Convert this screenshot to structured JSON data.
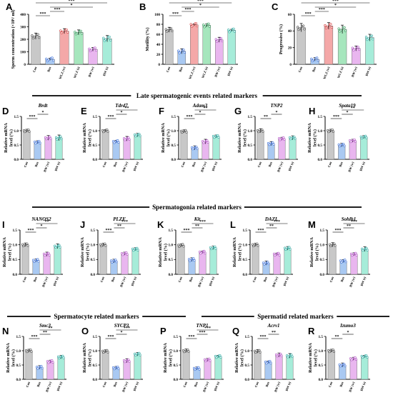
{
  "colors": {
    "Con": "#c8c8c8",
    "Bus": "#a9c9f2",
    "WLZ (w)": "#f4a8a8",
    "WLZ (s)": "#a6e6bd",
    "BW (w)": "#e9b6ef",
    "BW (s)": "#a6ecd9",
    "axis": "#000000",
    "dot": "#444444",
    "bus_dot": "#3a6fd8",
    "wlz_w_dot": "#d43a3a",
    "wlz_s_dot": "#2e9a58",
    "bw_w_dot": "#b14cc4",
    "bw_s_dot": "#28a9a0"
  },
  "sections": [
    {
      "id": "late",
      "title": "Late spermatogenic events related markers"
    },
    {
      "id": "spermatogonia",
      "title": "Spermatogonia related markers"
    },
    {
      "id": "spermatocyte",
      "title": "Spermatocyte related markers"
    },
    {
      "id": "spermatid",
      "title": "Spermatid related markers"
    }
  ],
  "chart_data": [
    {
      "panel": "A",
      "type": "bar",
      "title": "",
      "ylabel": "Sperm concentration (×10⁶/ ml)",
      "categories": [
        "Con",
        "Bus",
        "WLZ (w)",
        "WLZ (s)",
        "BW (w)",
        "BW (s)"
      ],
      "values": [
        225,
        40,
        265,
        255,
        120,
        205
      ],
      "errors": [
        25,
        8,
        20,
        20,
        15,
        25
      ],
      "ylim": [
        0,
        400
      ],
      "yticks": [
        "0",
        "100",
        "200",
        "300",
        "400"
      ],
      "significance": [
        "***",
        "***",
        "*",
        "***"
      ]
    },
    {
      "panel": "B",
      "type": "bar",
      "title": "",
      "ylabel": "Motility (%)",
      "categories": [
        "Con",
        "Bus",
        "WLZ (w)",
        "WLZ (s)",
        "BW (w)",
        "BW (s)"
      ],
      "values": [
        69,
        26,
        79,
        78,
        49,
        68
      ],
      "errors": [
        5,
        5,
        2,
        3,
        5,
        2
      ],
      "ylim": [
        0,
        100
      ],
      "yticks": [
        "0",
        "20",
        "40",
        "60",
        "80",
        "100"
      ],
      "significance": [
        "***",
        "***",
        "*",
        "***",
        "***"
      ]
    },
    {
      "panel": "C",
      "type": "bar",
      "title": "",
      "ylabel": "Progressive (%)",
      "categories": [
        "Con",
        "Bus",
        "WLZ (w)",
        "WLZ (s)",
        "BW (w)",
        "BW (s)"
      ],
      "values": [
        44,
        6,
        46,
        42,
        19,
        32
      ],
      "errors": [
        5,
        2,
        4,
        5,
        3,
        4
      ],
      "ylim": [
        0,
        60
      ],
      "yticks": [
        "0",
        "20",
        "40",
        "60"
      ],
      "significance": [
        "***",
        "***",
        "*",
        "***",
        "***"
      ]
    },
    {
      "panel": "D",
      "type": "bar",
      "title": "Brdt",
      "ylabel": "Relative mRNA level (%)",
      "categories": [
        "Con",
        "Bus",
        "BW (w)",
        "BW (s)"
      ],
      "values": [
        1.0,
        0.6,
        0.75,
        0.75
      ],
      "errors": [
        0.05,
        0.05,
        0.08,
        0.1
      ],
      "ylim": [
        0,
        1.5
      ],
      "yticks": [
        "0.0",
        "0.5",
        "1.0",
        "1.5"
      ],
      "significance": [
        "***",
        "*"
      ]
    },
    {
      "panel": "E",
      "type": "bar",
      "title": "Tdrd7",
      "ylabel": "Relative mRNA level (%)",
      "categories": [
        "Con",
        "Bus",
        "BW (w)",
        "BW (s)"
      ],
      "values": [
        1.0,
        0.62,
        0.72,
        0.85
      ],
      "errors": [
        0.04,
        0.04,
        0.08,
        0.06
      ],
      "ylim": [
        0,
        1.5
      ],
      "yticks": [
        "0.0",
        "0.5",
        "1.0",
        "1.5"
      ],
      "significance": [
        "***",
        "*",
        "**"
      ]
    },
    {
      "panel": "F",
      "type": "bar",
      "title": "Adam3",
      "ylabel": "Relative mRNA level (%)",
      "categories": [
        "Con",
        "Bus",
        "BW (w)",
        "BW (s)"
      ],
      "values": [
        0.98,
        0.4,
        0.62,
        0.8
      ],
      "errors": [
        0.05,
        0.07,
        0.08,
        0.05
      ],
      "ylim": [
        0,
        1.5
      ],
      "yticks": [
        "0.0",
        "0.5",
        "1.0",
        "1.5"
      ],
      "significance": [
        "***",
        "*",
        "**"
      ]
    },
    {
      "panel": "G",
      "type": "bar",
      "title": "TNP2",
      "ylabel": "Relative mRNA level (%)",
      "categories": [
        "Con",
        "Bus",
        "BW (w)",
        "BW (s)"
      ],
      "values": [
        1.0,
        0.55,
        0.72,
        0.75
      ],
      "errors": [
        0.07,
        0.07,
        0.05,
        0.07
      ],
      "ylim": [
        0,
        1.5
      ],
      "yticks": [
        "0.0",
        "0.5",
        "1.0",
        "1.5"
      ],
      "significance": [
        "**",
        "*"
      ]
    },
    {
      "panel": "H",
      "type": "bar",
      "title": "Spata19",
      "ylabel": "Relative mRNA level (%)",
      "categories": [
        "Con",
        "Bus",
        "BW (w)",
        "BW (s)"
      ],
      "values": [
        1.0,
        0.5,
        0.65,
        0.78
      ],
      "errors": [
        0.05,
        0.06,
        0.05,
        0.05
      ],
      "ylim": [
        0,
        1.5
      ],
      "yticks": [
        "0.0",
        "0.5",
        "1.0",
        "1.5"
      ],
      "significance": [
        "***",
        "*",
        "**"
      ]
    },
    {
      "panel": "I",
      "type": "bar",
      "title": "NANOS2",
      "ylabel": "Relative mRNA level (%)",
      "categories": [
        "Con",
        "Bus",
        "BW (w)",
        "BW (s)"
      ],
      "values": [
        1.0,
        0.47,
        0.68,
        0.95
      ],
      "errors": [
        0.06,
        0.05,
        0.07,
        0.08
      ],
      "ylim": [
        0,
        1.5
      ],
      "yticks": [
        "0.0",
        "0.5",
        "1.0",
        "1.5"
      ],
      "significance": [
        "***",
        "*",
        "**"
      ]
    },
    {
      "panel": "J",
      "type": "bar",
      "title": "PLZF",
      "ylabel": "Relative mRNA level (%)",
      "categories": [
        "Con",
        "Bus",
        "BW (w)",
        "BW (s)"
      ],
      "values": [
        1.0,
        0.45,
        0.7,
        0.85
      ],
      "errors": [
        0.05,
        0.06,
        0.05,
        0.05
      ],
      "ylim": [
        0,
        1.5
      ],
      "yticks": [
        "0.0",
        "0.5",
        "1.0",
        "1.5"
      ],
      "significance": [
        "***",
        "**",
        "***"
      ]
    },
    {
      "panel": "K",
      "type": "bar",
      "title": "Kit",
      "ylabel": "Relative mRNA level (%)",
      "categories": [
        "Con",
        "Bus",
        "BW (w)",
        "BW (s)"
      ],
      "values": [
        0.98,
        0.5,
        0.75,
        0.9
      ],
      "errors": [
        0.05,
        0.06,
        0.04,
        0.06
      ],
      "ylim": [
        0,
        1.5
      ],
      "yticks": [
        "0.0",
        "0.5",
        "1.0",
        "1.5"
      ],
      "significance": [
        "***",
        "**",
        "***"
      ]
    },
    {
      "panel": "L",
      "type": "bar",
      "title": "DAZL",
      "ylabel": "Relative mRNA level (%)",
      "categories": [
        "Con",
        "Bus",
        "BW (w)",
        "BW (s)"
      ],
      "values": [
        1.0,
        0.38,
        0.68,
        0.88
      ],
      "errors": [
        0.05,
        0.07,
        0.04,
        0.06
      ],
      "ylim": [
        0,
        1.5
      ],
      "yticks": [
        "0.0",
        "0.5",
        "1.0",
        "1.5"
      ],
      "significance": [
        "***",
        "**",
        "***"
      ]
    },
    {
      "panel": "M",
      "type": "bar",
      "title": "Sohlh1",
      "ylabel": "Relative mRNA level (%)",
      "categories": [
        "Con",
        "Bus",
        "BW (w)",
        "BW (s)"
      ],
      "values": [
        1.0,
        0.45,
        0.68,
        0.85
      ],
      "errors": [
        0.07,
        0.05,
        0.05,
        0.08
      ],
      "ylim": [
        0,
        1.5
      ],
      "yticks": [
        "0.0",
        "0.5",
        "1.0",
        "1.5"
      ],
      "significance": [
        "***",
        "**",
        "***"
      ]
    },
    {
      "panel": "N",
      "type": "bar",
      "title": "Smc3",
      "ylabel": "Relative mRNA level (%)",
      "categories": [
        "Con",
        "Bus",
        "BW (w)",
        "BW (s)"
      ],
      "values": [
        1.0,
        0.42,
        0.62,
        0.78
      ],
      "errors": [
        0.05,
        0.06,
        0.05,
        0.06
      ],
      "ylim": [
        0,
        1.5
      ],
      "yticks": [
        "0.0",
        "0.5",
        "1.0",
        "1.5"
      ],
      "significance": [
        "***",
        "**",
        "**"
      ]
    },
    {
      "panel": "O",
      "type": "bar",
      "title": "SYCP3",
      "ylabel": "Relative mRNA level (%)",
      "categories": [
        "Con",
        "Bus",
        "BW (w)",
        "BW (s)"
      ],
      "values": [
        0.98,
        0.4,
        0.65,
        0.88
      ],
      "errors": [
        0.05,
        0.05,
        0.07,
        0.06
      ],
      "ylim": [
        0,
        1.5
      ],
      "yticks": [
        "0.0",
        "0.5",
        "1.0",
        "1.5"
      ],
      "significance": [
        "***",
        "*",
        "***"
      ]
    },
    {
      "panel": "P",
      "type": "bar",
      "title": "TNP1",
      "ylabel": "Relative mRNA level (%)",
      "categories": [
        "Con",
        "Bus",
        "BW (w)",
        "BW (s)"
      ],
      "values": [
        1.0,
        0.38,
        0.68,
        0.8
      ],
      "errors": [
        0.06,
        0.05,
        0.05,
        0.04
      ],
      "ylim": [
        0,
        1.5
      ],
      "yticks": [
        "0.0",
        "0.5",
        "1.0",
        "1.5"
      ],
      "significance": [
        "***",
        "***",
        "***"
      ]
    },
    {
      "panel": "Q",
      "type": "bar",
      "title": "Acrv1",
      "ylabel": "Relative mRNA level (%)",
      "categories": [
        "Con",
        "Bus",
        "BW (w)",
        "BW (s)"
      ],
      "values": [
        0.98,
        0.6,
        0.85,
        0.82
      ],
      "errors": [
        0.06,
        0.04,
        0.07,
        0.08
      ],
      "ylim": [
        0,
        1.5
      ],
      "yticks": [
        "0.0",
        "0.5",
        "1.0",
        "1.5"
      ],
      "significance": [
        "***",
        "**"
      ]
    },
    {
      "panel": "R",
      "type": "bar",
      "title": "Izumo3",
      "ylabel": "Relative mRNA level (%)",
      "categories": [
        "Con",
        "Bus",
        "BW (w)",
        "BW (s)"
      ],
      "values": [
        1.0,
        0.5,
        0.72,
        0.8
      ],
      "errors": [
        0.05,
        0.07,
        0.05,
        0.04
      ],
      "ylim": [
        0,
        1.5
      ],
      "yticks": [
        "0.0",
        "0.5",
        "1.0",
        "1.5"
      ],
      "significance": [
        "**",
        "*"
      ]
    }
  ]
}
